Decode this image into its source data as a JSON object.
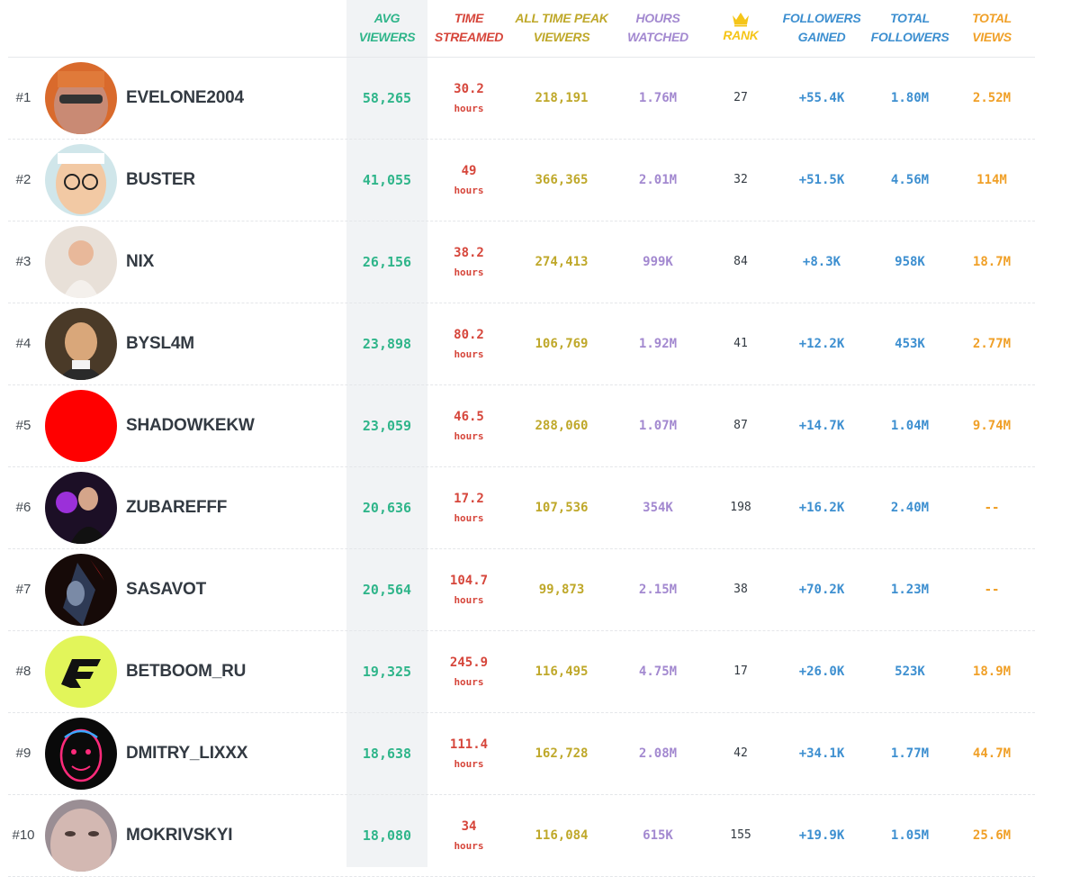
{
  "colors": {
    "avg_viewers": "#2fb58a",
    "time_streamed": "#d6463b",
    "peak_viewers": "#bfa82a",
    "hours_watched": "#a389d0",
    "rank": "#f5c518",
    "followers": "#3d8fd0",
    "total_views": "#f0a028"
  },
  "header": {
    "avg_viewers": [
      "AVG",
      "VIEWERS"
    ],
    "time_streamed": [
      "TIME",
      "STREAMED"
    ],
    "peak_viewers": [
      "ALL TIME PEAK",
      "VIEWERS"
    ],
    "hours_watched": [
      "HOURS",
      "WATCHED"
    ],
    "rank": "RANK",
    "rank_icon": "crown-icon",
    "followers_gained": [
      "FOLLOWERS",
      "GAINED"
    ],
    "total_followers": [
      "TOTAL",
      "FOLLOWERS"
    ],
    "total_views": [
      "TOTAL",
      "VIEWS"
    ]
  },
  "time_unit": "hours",
  "rows": [
    {
      "pos": "#1",
      "name": "EVELONE2004",
      "avg": "58,265",
      "time": "30.2",
      "peak": "218,191",
      "hours": "1.76M",
      "rank": "27",
      "gained": "+55.4K",
      "followers": "1.80M",
      "views": "2.52M",
      "avatar": "avatar-photo"
    },
    {
      "pos": "#2",
      "name": "BUSTER",
      "avg": "41,055",
      "time": "49",
      "peak": "366,365",
      "hours": "2.01M",
      "rank": "32",
      "gained": "+51.5K",
      "followers": "4.56M",
      "views": "114M",
      "avatar": "avatar-cartoon"
    },
    {
      "pos": "#3",
      "name": "NIX",
      "avg": "26,156",
      "time": "38.2",
      "peak": "274,413",
      "hours": "999K",
      "rank": "84",
      "gained": "+8.3K",
      "followers": "958K",
      "views": "18.7M",
      "avatar": "avatar-photo"
    },
    {
      "pos": "#4",
      "name": "BYSL4M",
      "avg": "23,898",
      "time": "80.2",
      "peak": "106,769",
      "hours": "1.92M",
      "rank": "41",
      "gained": "+12.2K",
      "followers": "453K",
      "views": "2.77M",
      "avatar": "avatar-painting"
    },
    {
      "pos": "#5",
      "name": "SHADOWKEKW",
      "avg": "23,059",
      "time": "46.5",
      "peak": "288,060",
      "hours": "1.07M",
      "rank": "87",
      "gained": "+14.7K",
      "followers": "1.04M",
      "views": "9.74M",
      "avatar": "avatar-red-circle"
    },
    {
      "pos": "#6",
      "name": "ZUBAREFFF",
      "avg": "20,636",
      "time": "17.2",
      "peak": "107,536",
      "hours": "354K",
      "rank": "198",
      "gained": "+16.2K",
      "followers": "2.40M",
      "views": "--",
      "avatar": "avatar-photo"
    },
    {
      "pos": "#7",
      "name": "SASAVOT",
      "avg": "20,564",
      "time": "104.7",
      "peak": "99,873",
      "hours": "2.15M",
      "rank": "38",
      "gained": "+70.2K",
      "followers": "1.23M",
      "views": "--",
      "avatar": "avatar-art"
    },
    {
      "pos": "#8",
      "name": "BETBOOM_RU",
      "avg": "19,325",
      "time": "245.9",
      "peak": "116,495",
      "hours": "4.75M",
      "rank": "17",
      "gained": "+26.0K",
      "followers": "523K",
      "views": "18.9M",
      "avatar": "avatar-logo"
    },
    {
      "pos": "#9",
      "name": "DMITRY_LIXXX",
      "avg": "18,638",
      "time": "111.4",
      "peak": "162,728",
      "hours": "2.08M",
      "rank": "42",
      "gained": "+34.1K",
      "followers": "1.77M",
      "views": "44.7M",
      "avatar": "avatar-neon"
    },
    {
      "pos": "#10",
      "name": "MOKRIVSKYI",
      "avg": "18,080",
      "time": "34",
      "peak": "116,084",
      "hours": "615K",
      "rank": "155",
      "gained": "+19.9K",
      "followers": "1.05M",
      "views": "25.6M",
      "avatar": "avatar-photo"
    }
  ]
}
